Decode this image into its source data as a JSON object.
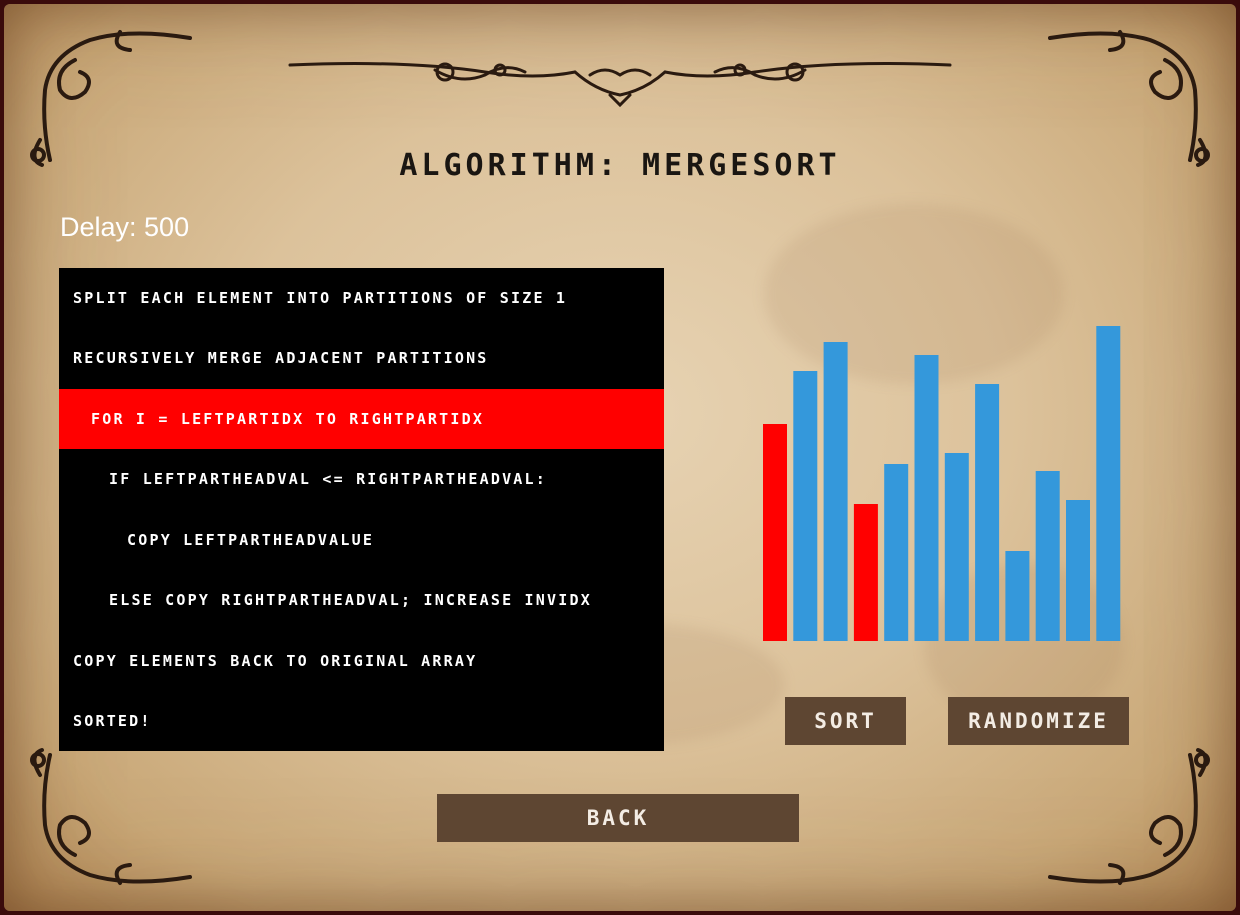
{
  "title": "ALGORITHM: MERGESORT",
  "delay_label": "Delay: 500",
  "pseudocode": [
    {
      "text": "SPLIT EACH ELEMENT INTO PARTITIONS OF SIZE 1",
      "indent": 0,
      "active": false
    },
    {
      "text": "RECURSIVELY MERGE ADJACENT PARTITIONS",
      "indent": 0,
      "active": false
    },
    {
      "text": "FOR I = LEFTPARTIDX TO RIGHTPARTIDX",
      "indent": 1,
      "active": true
    },
    {
      "text": "IF LEFTPARTHEADVAL <= RIGHTPARTHEADVAL:",
      "indent": 2,
      "active": false
    },
    {
      "text": "COPY LEFTPARTHEADVALUE",
      "indent": 3,
      "active": false
    },
    {
      "text": "ELSE COPY RIGHTPARTHEADVAL; INCREASE INVIDX",
      "indent": 2,
      "active": false
    },
    {
      "text": "COPY ELEMENTS BACK TO ORIGINAL ARRAY",
      "indent": 0,
      "active": false
    },
    {
      "text": "SORTED!",
      "indent": 0,
      "active": false
    }
  ],
  "buttons": {
    "sort": "SORT",
    "randomize": "RANDOMIZE",
    "back": "BACK"
  },
  "colors": {
    "bar_default": "#3498db",
    "bar_highlight": "#ff0000",
    "button_bg": "#5e4632",
    "highlight_line": "#ff0000"
  },
  "chart_data": {
    "type": "bar",
    "values": [
      217,
      270,
      299,
      137,
      177,
      286,
      188,
      257,
      90,
      170,
      141,
      315
    ],
    "highlighted": [
      0,
      3
    ]
  }
}
